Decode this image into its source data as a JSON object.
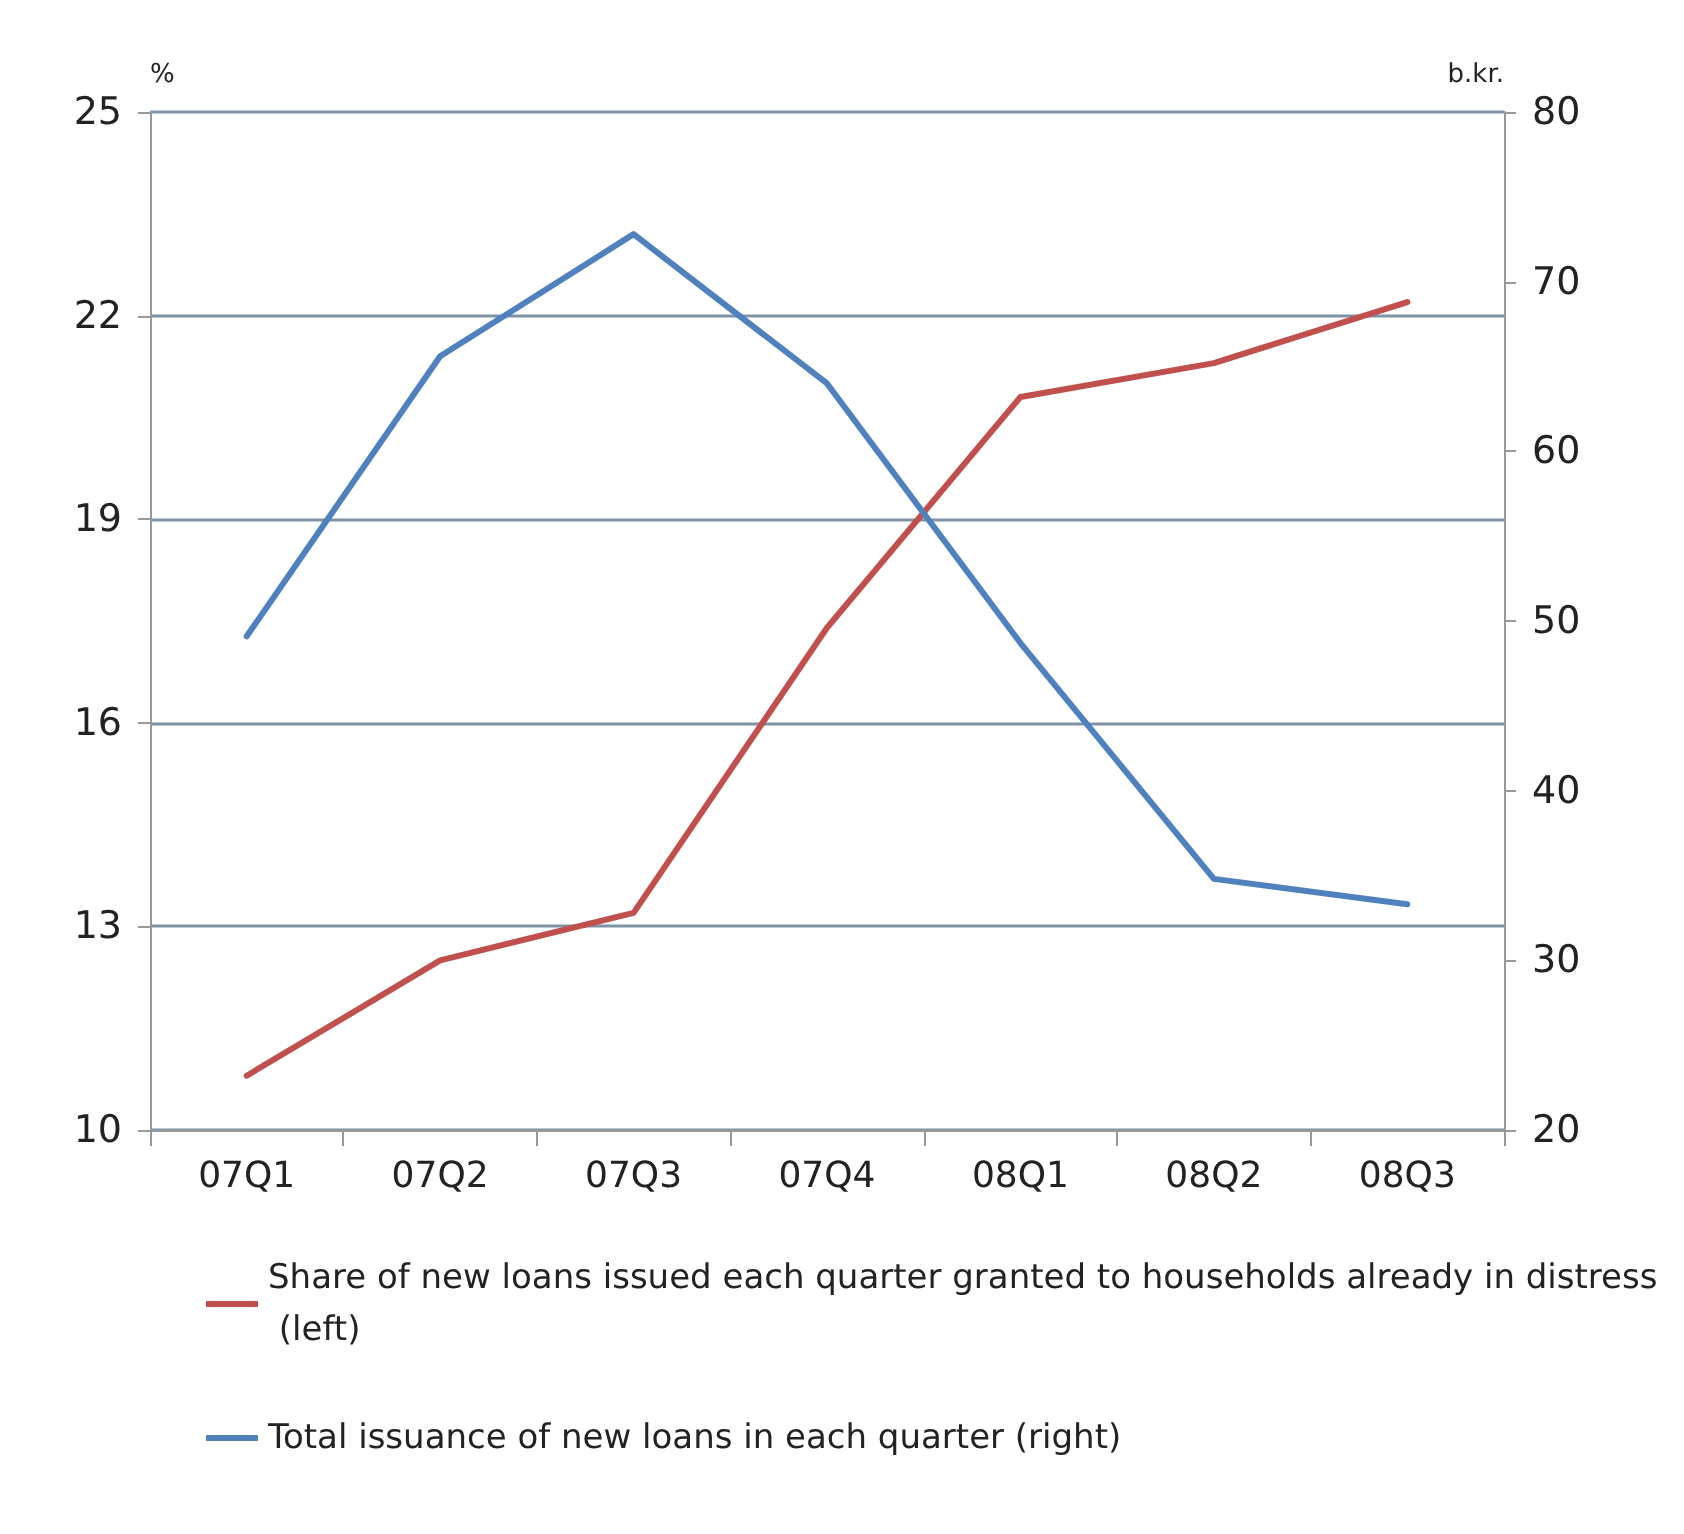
{
  "chart_data": {
    "type": "line",
    "categories": [
      "07Q1",
      "07Q2",
      "07Q3",
      "07Q4",
      "08Q1",
      "08Q2",
      "08Q3"
    ],
    "ylabel": "%",
    "y2label": "b.kr.",
    "ylim": [
      10,
      25
    ],
    "yticks": [
      10,
      13,
      16,
      19,
      22,
      25
    ],
    "y2lim": [
      20,
      80
    ],
    "y2ticks": [
      20,
      30,
      40,
      50,
      60,
      70,
      80
    ],
    "grid": "y",
    "legend": "bottom",
    "marker": "none",
    "line_style": "solid",
    "series": [
      {
        "name": "Share of new loans issued each quarter granted to households already in distress (left)",
        "color": "#c0504d",
        "values": [
          10.8,
          12.5,
          13.2,
          17.4,
          20.8,
          21.3,
          22.2
        ]
      },
      {
        "name": "Total issuance of new loans in each quarter (right)",
        "color": "#4f81bd",
        "axis": "y2",
        "values": [
          49.1,
          65.6,
          72.8,
          64.0,
          48.7,
          34.8,
          33.3
        ]
      }
    ]
  }
}
